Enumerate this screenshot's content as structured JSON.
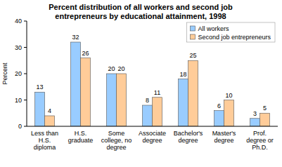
{
  "chart_data": {
    "type": "bar",
    "title": "Percent distribution of all workers and second job entrepreneurs by educational attainment, 1998",
    "y_label": "Percent",
    "categories": [
      "Less than H.S. diploma",
      "H.S. graduate",
      "Some college, no degree",
      "Associate degree",
      "Bachelor's degree",
      "Master's degree",
      "Prof. degree or Ph.D."
    ],
    "series": [
      {
        "name": "All workers",
        "color": "#99ccff",
        "values": [
          13,
          32,
          20,
          8,
          18,
          6,
          3
        ]
      },
      {
        "name": "Second job entrepreneurs",
        "color": "#ffcc99",
        "values": [
          4,
          26,
          20,
          11,
          25,
          10,
          5
        ]
      }
    ],
    "ylim": [
      0,
      40
    ],
    "yticks": [
      0,
      10,
      20,
      30,
      40
    ],
    "grid": false,
    "legend": "top-right",
    "data_labels": true
  }
}
